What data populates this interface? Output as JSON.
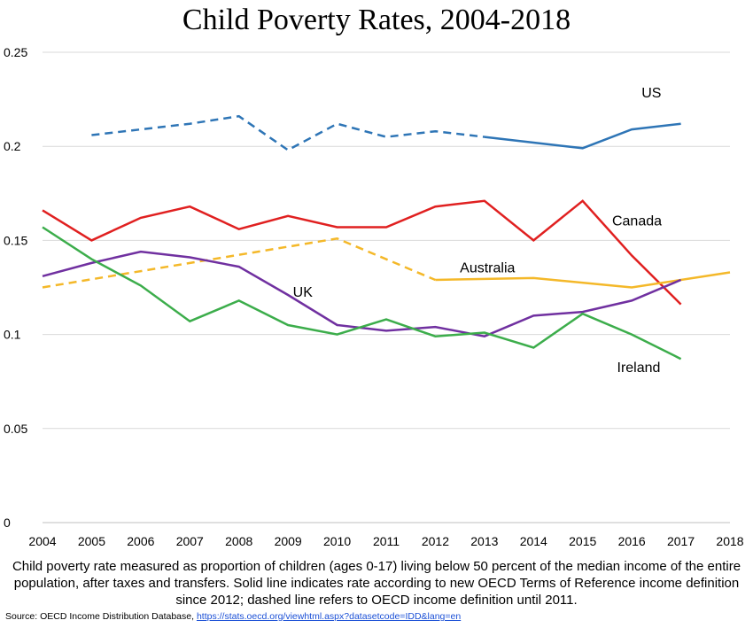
{
  "chart_data": {
    "type": "line",
    "title": "Child Poverty Rates, 2004-2018",
    "x": [
      2004,
      2005,
      2006,
      2007,
      2008,
      2009,
      2010,
      2011,
      2012,
      2013,
      2014,
      2015,
      2016,
      2017,
      2018
    ],
    "ylim": [
      0,
      0.25
    ],
    "yticks": [
      "0",
      "0.05",
      "0.1",
      "0.15",
      "0.2",
      "0.25"
    ],
    "grid": "horizontal",
    "series": [
      {
        "name": "US",
        "color": "#2e75b6",
        "dashed": [
          [
            2005,
            0.206
          ],
          [
            2006,
            0.209
          ],
          [
            2007,
            0.212
          ],
          [
            2008,
            0.216
          ],
          [
            2009,
            0.198
          ],
          [
            2010,
            0.212
          ],
          [
            2011,
            0.205
          ],
          [
            2012,
            0.208
          ],
          [
            2013,
            0.205
          ]
        ],
        "solid": [
          [
            2013,
            0.205
          ],
          [
            2014,
            0.202
          ],
          [
            2015,
            0.199
          ],
          [
            2016,
            0.209
          ],
          [
            2017,
            0.212
          ]
        ],
        "label_at": [
          2016.2,
          0.226
        ]
      },
      {
        "name": "Canada",
        "color": "#e02020",
        "dashed": [],
        "solid": [
          [
            2004,
            0.166
          ],
          [
            2005,
            0.15
          ],
          [
            2006,
            0.162
          ],
          [
            2007,
            0.168
          ],
          [
            2008,
            0.156
          ],
          [
            2009,
            0.163
          ],
          [
            2010,
            0.157
          ],
          [
            2011,
            0.157
          ],
          [
            2012,
            0.168
          ],
          [
            2013,
            0.171
          ],
          [
            2014,
            0.15
          ],
          [
            2015,
            0.171
          ],
          [
            2016,
            0.142
          ],
          [
            2017,
            0.116
          ]
        ],
        "label_at": [
          2015.6,
          0.158
        ]
      },
      {
        "name": "Australia",
        "color": "#f4b829",
        "dashed": [
          [
            2004,
            0.125
          ],
          [
            2010,
            0.151
          ],
          [
            2012,
            0.129
          ]
        ],
        "solid": [
          [
            2012,
            0.129
          ],
          [
            2014,
            0.13
          ],
          [
            2016,
            0.125
          ],
          [
            2018,
            0.133
          ]
        ],
        "label_at": [
          2012.5,
          0.133
        ]
      },
      {
        "name": "UK",
        "color": "#7030a0",
        "dashed": [],
        "solid": [
          [
            2004,
            0.131
          ],
          [
            2005,
            0.138
          ],
          [
            2006,
            0.144
          ],
          [
            2007,
            0.141
          ],
          [
            2008,
            0.136
          ],
          [
            2009,
            0.121
          ],
          [
            2010,
            0.105
          ],
          [
            2011,
            0.102
          ],
          [
            2012,
            0.104
          ],
          [
            2013,
            0.099
          ],
          [
            2014,
            0.11
          ],
          [
            2015,
            0.112
          ],
          [
            2016,
            0.118
          ],
          [
            2017,
            0.129
          ]
        ],
        "label_at": [
          2009.1,
          0.12
        ]
      },
      {
        "name": "Ireland",
        "color": "#3cad4b",
        "dashed": [],
        "solid": [
          [
            2004,
            0.157
          ],
          [
            2005,
            0.14
          ],
          [
            2006,
            0.126
          ],
          [
            2007,
            0.107
          ],
          [
            2008,
            0.118
          ],
          [
            2009,
            0.105
          ],
          [
            2010,
            0.1
          ],
          [
            2011,
            0.108
          ],
          [
            2012,
            0.099
          ],
          [
            2013,
            0.101
          ],
          [
            2014,
            0.093
          ],
          [
            2015,
            0.111
          ],
          [
            2016,
            0.1
          ],
          [
            2017,
            0.087
          ]
        ],
        "label_at": [
          2015.7,
          0.08
        ]
      }
    ]
  },
  "caption": "Child poverty rate measured as proportion of children (ages 0-17) living below 50 percent of the median income of the entire population, after taxes and transfers. Solid line indicates rate according to new OECD Terms of Reference income definition since 2012; dashed line refers to OECD income definition until 2011.",
  "source": {
    "prefix": "Source: OECD Income Distribution Database, ",
    "link": "https://stats.oecd.org/viewhtml.aspx?datasetcode=IDD&lang=en"
  }
}
